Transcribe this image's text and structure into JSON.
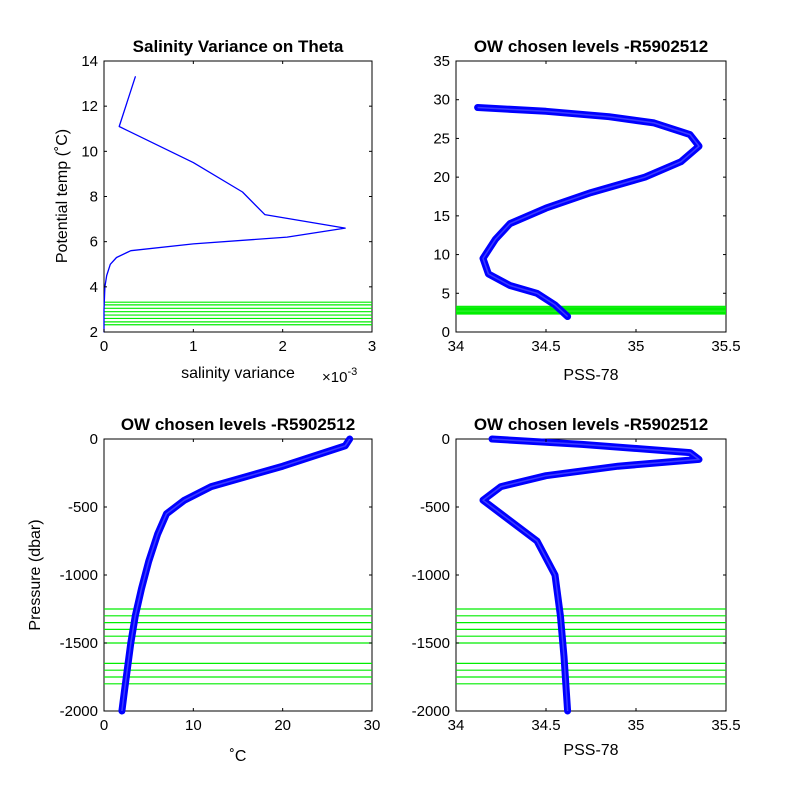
{
  "colors": {
    "profile": "#0000ff",
    "levels": "#00ee00",
    "axis": "#000000",
    "background": "#ffffff"
  },
  "chart_data": [
    {
      "id": "p1",
      "type": "line",
      "title": "Salinity Variance on Theta",
      "xlabel": "salinity variance",
      "xexp": "×10",
      "xexp_sup": "-3",
      "ylabel": "Potential temp (˚C)",
      "xlim": [
        0,
        0.003
      ],
      "ylim": [
        2,
        14
      ],
      "xticks": [
        0,
        0.001,
        0.002,
        0.003
      ],
      "xtick_labels": [
        "0",
        "1",
        "2",
        "3"
      ],
      "yticks": [
        2,
        4,
        6,
        8,
        10,
        12,
        14
      ],
      "ytick_labels": [
        "2",
        "4",
        "6",
        "8",
        "10",
        "12",
        "14"
      ],
      "series": [
        {
          "x": [
            0.00035,
            0.00017,
            0.001,
            0.00155,
            0.0018,
            0.0027,
            0.00205,
            0.001,
            0.0003,
            0.00014,
            7e-05,
            3e-05,
            1e-05,
            0.0,
            0.0
          ],
          "y": [
            13.3,
            11.1,
            9.5,
            8.2,
            7.2,
            6.6,
            6.2,
            5.9,
            5.6,
            5.3,
            5.0,
            4.5,
            4.0,
            3.0,
            2.0
          ]
        }
      ],
      "hlines": [
        2.32,
        2.45,
        2.6,
        2.75,
        2.9,
        3.05,
        3.2,
        3.32
      ]
    },
    {
      "id": "p2",
      "type": "line",
      "title": "OW chosen levels -R5902512",
      "xlabel": "PSS-78",
      "ylabel": "",
      "xlim": [
        34,
        35.5
      ],
      "ylim": [
        0,
        35
      ],
      "xticks": [
        34,
        34.5,
        35,
        35.5
      ],
      "xtick_labels": [
        "34",
        "34.5",
        "35",
        "35.5"
      ],
      "yticks": [
        0,
        5,
        10,
        15,
        20,
        25,
        30,
        35
      ],
      "ytick_labels": [
        "0",
        "5",
        "10",
        "15",
        "20",
        "25",
        "30",
        "35"
      ],
      "series": [
        {
          "x": [
            34.12,
            34.5,
            34.85,
            35.1,
            35.3,
            35.35,
            35.25,
            35.05,
            34.75,
            34.5,
            34.3,
            34.22,
            34.15,
            34.18,
            34.3,
            34.45,
            34.55,
            34.62
          ],
          "y": [
            29.0,
            28.5,
            27.8,
            27.0,
            25.5,
            24.0,
            22.0,
            20.0,
            18.0,
            16.0,
            14.0,
            12.0,
            9.5,
            7.5,
            6.0,
            5.0,
            3.5,
            2.0
          ]
        }
      ],
      "hlines": [
        2.32,
        2.45,
        2.6,
        2.75,
        2.9,
        3.05,
        3.2,
        3.32
      ]
    },
    {
      "id": "p3",
      "type": "line",
      "title": "OW chosen levels -R5902512",
      "xlabel": "˚C",
      "ylabel": "Pressure (dbar)",
      "xlim": [
        0,
        30
      ],
      "ylim": [
        -2000,
        0
      ],
      "xticks": [
        0,
        10,
        20,
        30
      ],
      "xtick_labels": [
        "0",
        "10",
        "20",
        "30"
      ],
      "yticks": [
        -2000,
        -1500,
        -1000,
        -500,
        0
      ],
      "ytick_labels": [
        "-2000",
        "-1500",
        "-1000",
        "-500",
        "0"
      ],
      "series": [
        {
          "x": [
            27.5,
            27.0,
            20.0,
            12.0,
            9.0,
            7.0,
            6.0,
            5.0,
            4.2,
            3.5,
            3.0,
            2.6,
            2.3,
            2.0
          ],
          "y": [
            0,
            -50,
            -200,
            -350,
            -450,
            -550,
            -700,
            -900,
            -1100,
            -1300,
            -1500,
            -1700,
            -1850,
            -2000
          ]
        }
      ],
      "hlines": [
        -1250,
        -1300,
        -1350,
        -1400,
        -1450,
        -1500,
        -1650,
        -1700,
        -1750,
        -1800
      ]
    },
    {
      "id": "p4",
      "type": "line",
      "title": "OW chosen levels -R5902512",
      "xlabel": "PSS-78",
      "ylabel": "",
      "xlim": [
        34,
        35.5
      ],
      "ylim": [
        -2000,
        0
      ],
      "xticks": [
        34,
        34.5,
        35,
        35.5
      ],
      "xtick_labels": [
        "34",
        "34.5",
        "35",
        "35.5"
      ],
      "yticks": [
        -2000,
        -1500,
        -1000,
        -500,
        0
      ],
      "ytick_labels": [
        "-2000",
        "-1500",
        "-1000",
        "-500",
        "0"
      ],
      "series": [
        {
          "x": [
            34.2,
            34.7,
            35.3,
            35.35,
            34.9,
            34.5,
            34.25,
            34.15,
            34.25,
            34.45,
            34.55,
            34.58,
            34.6,
            34.62
          ],
          "y": [
            0,
            -40,
            -100,
            -150,
            -200,
            -270,
            -350,
            -450,
            -550,
            -750,
            -1000,
            -1300,
            -1600,
            -2000
          ]
        }
      ],
      "hlines": [
        -1250,
        -1300,
        -1350,
        -1400,
        -1450,
        -1500,
        -1650,
        -1700,
        -1750,
        -1800
      ]
    }
  ]
}
